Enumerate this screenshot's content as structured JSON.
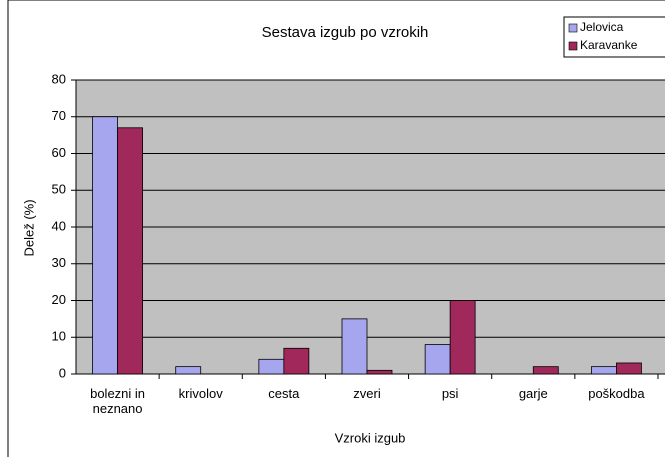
{
  "chart_data": {
    "type": "bar",
    "title": "Sestava izgub po vzrokih",
    "x_label": "Vzroki izgub",
    "y_label": "Delež (%)",
    "categories": [
      "bolezni in neznano",
      "krivolov",
      "cesta",
      "zveri",
      "psi",
      "garje",
      "poškodba"
    ],
    "series": [
      {
        "name": "Jelovica",
        "color": "#a6a6ee",
        "values": [
          70,
          2,
          4,
          15,
          8,
          0,
          2
        ]
      },
      {
        "name": "Karavanke",
        "color": "#a0285a",
        "values": [
          67,
          0,
          7,
          1,
          20,
          2,
          3
        ]
      }
    ],
    "ylim": [
      0,
      80
    ],
    "yticks": [
      0,
      10,
      20,
      30,
      40,
      50,
      60,
      70,
      80
    ],
    "grid": true,
    "legend": "top-right"
  }
}
